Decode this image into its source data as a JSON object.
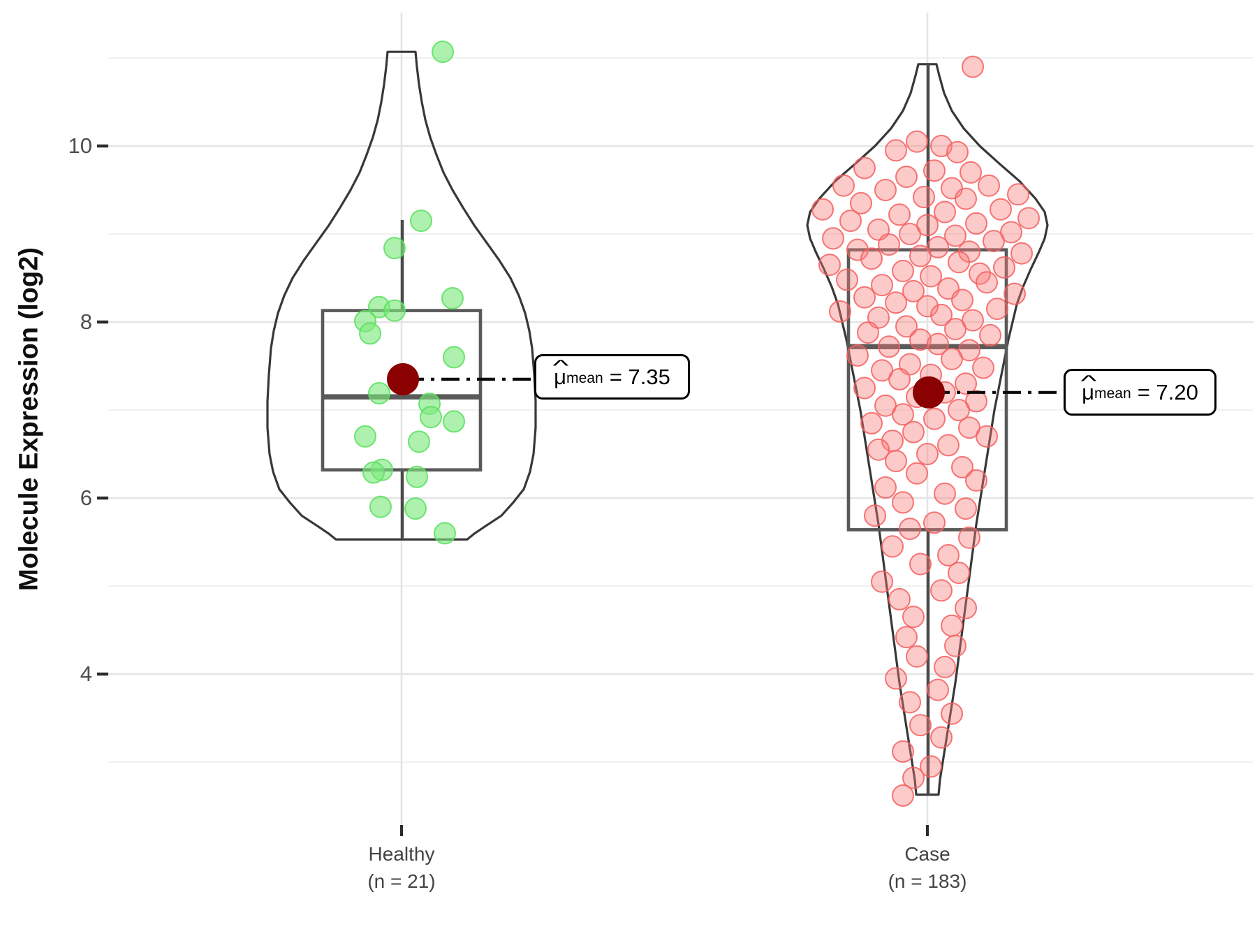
{
  "y_axis": {
    "title": "Molecule Expression (log2)",
    "tick_labels": [
      "10",
      "8",
      "6",
      "4"
    ],
    "tick_values": [
      10,
      8,
      6,
      4
    ],
    "minor_values": [
      11,
      9,
      7,
      5,
      3
    ]
  },
  "x_axis": {
    "groups": [
      {
        "label": "Healthy",
        "n_label": "(n = 21)"
      },
      {
        "label": "Case",
        "n_label": "(n = 183)"
      }
    ]
  },
  "annotations": [
    {
      "hat": "^",
      "mu": "μ",
      "sub": "mean",
      "eqv": "= 7.35"
    },
    {
      "hat": "^",
      "mu": "μ",
      "sub": "mean",
      "eqv": "= 7.20"
    }
  ],
  "chart_data": {
    "type": "violin-box-jitter",
    "title": "",
    "xlabel": "",
    "ylabel": "Molecule Expression (log2)",
    "ylim": [
      2.2,
      11.5
    ],
    "grid": "on",
    "colors": {
      "violin_stroke": "#383838",
      "box_stroke": "#595959",
      "whisker": "#4a4a4a",
      "grid_major": "#e4e4e4",
      "grid_minor": "#f1f1f1",
      "axis_text": "#4e4e4e",
      "tick_mark": "#2b2b2b",
      "healthy_fill": "#7ce87c",
      "healthy_stroke": "#58e05e",
      "case_fill": "#fb7b7b",
      "case_stroke": "#f55f5f",
      "mean_dot": "#8b0000",
      "annotation_line": "#0a0a0a"
    },
    "groups": [
      {
        "name": "Healthy",
        "n": 21,
        "mean": 7.35,
        "boxplot": {
          "min": 5.53,
          "q1": 6.32,
          "median": 7.15,
          "q3": 8.13,
          "whisker_max": 9.16
        },
        "violin_range": [
          5.53,
          11.07
        ],
        "violin_profile": [
          [
            11.07,
            20
          ],
          [
            10.9,
            22
          ],
          [
            10.7,
            25
          ],
          [
            10.5,
            29
          ],
          [
            10.3,
            34
          ],
          [
            10.1,
            41
          ],
          [
            9.9,
            50
          ],
          [
            9.7,
            60
          ],
          [
            9.5,
            73
          ],
          [
            9.3,
            88
          ],
          [
            9.1,
            104
          ],
          [
            8.9,
            122
          ],
          [
            8.7,
            140
          ],
          [
            8.5,
            156
          ],
          [
            8.3,
            168
          ],
          [
            8.1,
            177
          ],
          [
            7.9,
            183
          ],
          [
            7.7,
            187
          ],
          [
            7.4,
            190
          ],
          [
            7.1,
            192
          ],
          [
            6.8,
            192
          ],
          [
            6.5,
            189
          ],
          [
            6.3,
            184
          ],
          [
            6.1,
            175
          ],
          [
            5.95,
            160
          ],
          [
            5.8,
            143
          ],
          [
            5.68,
            120
          ],
          [
            5.6,
            105
          ],
          [
            5.53,
            94
          ]
        ],
        "points": [
          [
            59,
            11.07
          ],
          [
            28,
            9.15
          ],
          [
            -10,
            8.84
          ],
          [
            73,
            8.27
          ],
          [
            -32,
            8.17
          ],
          [
            -10,
            8.13
          ],
          [
            -52,
            8.01
          ],
          [
            -45,
            7.87
          ],
          [
            75,
            7.6
          ],
          [
            -32,
            7.19
          ],
          [
            40,
            7.07
          ],
          [
            42,
            6.92
          ],
          [
            75,
            6.87
          ],
          [
            -52,
            6.7
          ],
          [
            25,
            6.64
          ],
          [
            -28,
            6.32
          ],
          [
            -40,
            6.29
          ],
          [
            22,
            6.24
          ],
          [
            -30,
            5.9
          ],
          [
            20,
            5.88
          ],
          [
            62,
            5.6
          ]
        ]
      },
      {
        "name": "Case",
        "n": 183,
        "mean": 7.2,
        "boxplot": {
          "min": 2.63,
          "q1": 5.64,
          "median": 7.72,
          "q3": 8.82,
          "whisker_max": 10.93
        },
        "violin_range": [
          2.63,
          10.93
        ],
        "violin_profile": [
          [
            10.93,
            13
          ],
          [
            10.8,
            17
          ],
          [
            10.6,
            24
          ],
          [
            10.4,
            35
          ],
          [
            10.2,
            52
          ],
          [
            10.0,
            75
          ],
          [
            9.8,
            103
          ],
          [
            9.6,
            132
          ],
          [
            9.4,
            155
          ],
          [
            9.25,
            168
          ],
          [
            9.1,
            172
          ],
          [
            8.95,
            168
          ],
          [
            8.8,
            160
          ],
          [
            8.6,
            148
          ],
          [
            8.4,
            137
          ],
          [
            8.2,
            128
          ],
          [
            8.0,
            122
          ],
          [
            7.8,
            116
          ],
          [
            7.6,
            111
          ],
          [
            7.4,
            106
          ],
          [
            7.2,
            101
          ],
          [
            7.0,
            96
          ],
          [
            6.8,
            92
          ],
          [
            6.6,
            88
          ],
          [
            6.4,
            84
          ],
          [
            6.2,
            80
          ],
          [
            6.0,
            76
          ],
          [
            5.7,
            70
          ],
          [
            5.4,
            65
          ],
          [
            5.1,
            60
          ],
          [
            4.8,
            55
          ],
          [
            4.5,
            50
          ],
          [
            4.2,
            45
          ],
          [
            3.9,
            40
          ],
          [
            3.6,
            34
          ],
          [
            3.3,
            28
          ],
          [
            3.0,
            22
          ],
          [
            2.8,
            18
          ],
          [
            2.63,
            16
          ]
        ],
        "points": [
          [
            65,
            10.9
          ],
          [
            -15,
            10.05
          ],
          [
            20,
            10.0
          ],
          [
            -45,
            9.95
          ],
          [
            43,
            9.93
          ],
          [
            -90,
            9.75
          ],
          [
            10,
            9.72
          ],
          [
            62,
            9.7
          ],
          [
            -30,
            9.65
          ],
          [
            -120,
            9.55
          ],
          [
            88,
            9.55
          ],
          [
            35,
            9.52
          ],
          [
            -60,
            9.5
          ],
          [
            130,
            9.45
          ],
          [
            -5,
            9.42
          ],
          [
            55,
            9.4
          ],
          [
            -95,
            9.35
          ],
          [
            -150,
            9.28
          ],
          [
            105,
            9.28
          ],
          [
            25,
            9.25
          ],
          [
            -40,
            9.22
          ],
          [
            145,
            9.18
          ],
          [
            -110,
            9.15
          ],
          [
            70,
            9.12
          ],
          [
            0,
            9.1
          ],
          [
            -70,
            9.05
          ],
          [
            120,
            9.02
          ],
          [
            -25,
            9.0
          ],
          [
            40,
            8.98
          ],
          [
            -135,
            8.95
          ],
          [
            95,
            8.92
          ],
          [
            -55,
            8.88
          ],
          [
            15,
            8.85
          ],
          [
            -100,
            8.82
          ],
          [
            60,
            8.8
          ],
          [
            135,
            8.78
          ],
          [
            -10,
            8.75
          ],
          [
            -80,
            8.72
          ],
          [
            45,
            8.68
          ],
          [
            -140,
            8.65
          ],
          [
            110,
            8.62
          ],
          [
            -35,
            8.58
          ],
          [
            75,
            8.55
          ],
          [
            5,
            8.52
          ],
          [
            -115,
            8.48
          ],
          [
            85,
            8.45
          ],
          [
            -65,
            8.42
          ],
          [
            30,
            8.38
          ],
          [
            -20,
            8.35
          ],
          [
            125,
            8.32
          ],
          [
            -90,
            8.28
          ],
          [
            50,
            8.25
          ],
          [
            -45,
            8.22
          ],
          [
            0,
            8.18
          ],
          [
            100,
            8.15
          ],
          [
            -125,
            8.12
          ],
          [
            20,
            8.08
          ],
          [
            -70,
            8.05
          ],
          [
            65,
            8.02
          ],
          [
            -30,
            7.95
          ],
          [
            40,
            7.92
          ],
          [
            -85,
            7.88
          ],
          [
            90,
            7.85
          ],
          [
            -10,
            7.8
          ],
          [
            15,
            7.75
          ],
          [
            -55,
            7.72
          ],
          [
            60,
            7.68
          ],
          [
            -100,
            7.62
          ],
          [
            35,
            7.58
          ],
          [
            -25,
            7.52
          ],
          [
            80,
            7.48
          ],
          [
            -65,
            7.45
          ],
          [
            5,
            7.4
          ],
          [
            -40,
            7.35
          ],
          [
            55,
            7.3
          ],
          [
            -90,
            7.25
          ],
          [
            25,
            7.2
          ],
          [
            -15,
            7.15
          ],
          [
            70,
            7.1
          ],
          [
            -60,
            7.05
          ],
          [
            45,
            7.0
          ],
          [
            -35,
            6.95
          ],
          [
            10,
            6.9
          ],
          [
            -80,
            6.85
          ],
          [
            60,
            6.8
          ],
          [
            -20,
            6.75
          ],
          [
            85,
            6.7
          ],
          [
            -50,
            6.65
          ],
          [
            30,
            6.6
          ],
          [
            -70,
            6.55
          ],
          [
            0,
            6.5
          ],
          [
            -45,
            6.42
          ],
          [
            50,
            6.35
          ],
          [
            -15,
            6.28
          ],
          [
            70,
            6.2
          ],
          [
            -60,
            6.12
          ],
          [
            25,
            6.05
          ],
          [
            -35,
            5.95
          ],
          [
            55,
            5.88
          ],
          [
            -75,
            5.8
          ],
          [
            10,
            5.72
          ],
          [
            -25,
            5.65
          ],
          [
            60,
            5.55
          ],
          [
            -50,
            5.45
          ],
          [
            30,
            5.35
          ],
          [
            -10,
            5.25
          ],
          [
            45,
            5.15
          ],
          [
            -65,
            5.05
          ],
          [
            20,
            4.95
          ],
          [
            -40,
            4.85
          ],
          [
            55,
            4.75
          ],
          [
            -20,
            4.65
          ],
          [
            35,
            4.55
          ],
          [
            -30,
            4.42
          ],
          [
            40,
            4.32
          ],
          [
            -15,
            4.2
          ],
          [
            25,
            4.08
          ],
          [
            -45,
            3.95
          ],
          [
            15,
            3.82
          ],
          [
            -25,
            3.68
          ],
          [
            35,
            3.55
          ],
          [
            -10,
            3.42
          ],
          [
            20,
            3.28
          ],
          [
            -35,
            3.12
          ],
          [
            5,
            2.95
          ],
          [
            -20,
            2.82
          ],
          [
            -35,
            2.62
          ]
        ]
      }
    ],
    "mean_annotations": [
      {
        "group": "Healthy",
        "value": 7.35
      },
      {
        "group": "Case",
        "value": 7.2
      }
    ]
  }
}
